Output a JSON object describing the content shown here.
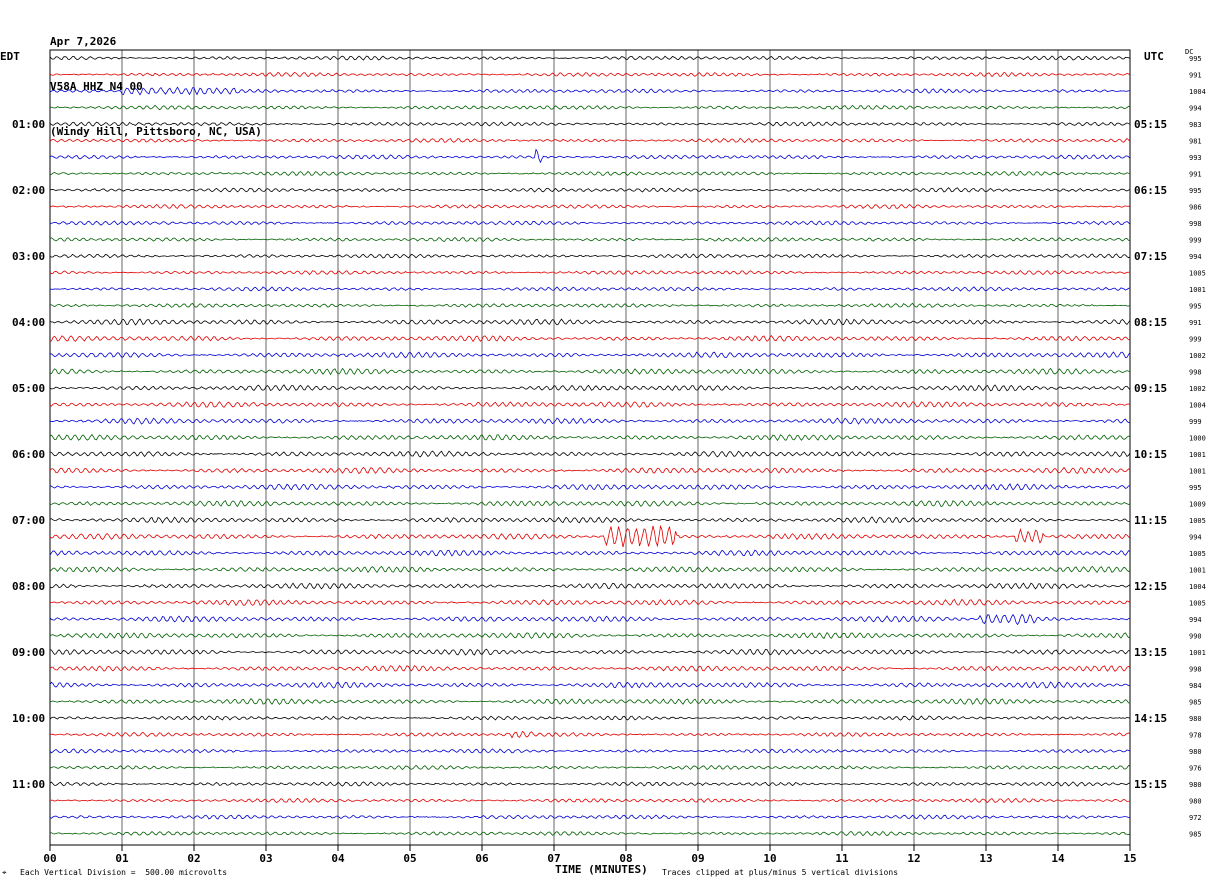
{
  "header": {
    "date": "Apr 7,2026",
    "station": "V58A HHZ N4 00",
    "location": "(Windy Hill, Pittsboro, NC, USA)"
  },
  "left_tz": "EDT",
  "right_tz": "UTC",
  "dc_label": "DC",
  "footer": {
    "scale": "Each Vertical Division =  500.00 microvolts",
    "clip": "Traces clipped at plus/minus 5 vertical divisions",
    "xlabel": "TIME (MINUTES)"
  },
  "chart_data": {
    "type": "line",
    "title": "V58A HHZ N4 00",
    "xlabel": "TIME (MINUTES)",
    "xlim": [
      0,
      15
    ],
    "x_ticks": [
      "00",
      "01",
      "02",
      "03",
      "04",
      "05",
      "06",
      "07",
      "08",
      "09",
      "10",
      "11",
      "12",
      "13",
      "14",
      "15"
    ],
    "left_hour_labels": [
      "01:00",
      "02:00",
      "03:00",
      "04:00",
      "05:00",
      "06:00",
      "07:00",
      "08:00",
      "09:00",
      "10:00",
      "11:00"
    ],
    "right_hour_labels": [
      "05:15",
      "06:15",
      "07:15",
      "08:15",
      "09:15",
      "10:15",
      "11:15",
      "12:15",
      "13:15",
      "14:15",
      "15:15"
    ],
    "trace_colors": [
      "#000000",
      "#e00000",
      "#0000d0",
      "#006000"
    ],
    "dc_offsets": [
      995,
      991,
      1004,
      994,
      983,
      981,
      993,
      991,
      995,
      986,
      998,
      999,
      994,
      1005,
      1001,
      995,
      991,
      999,
      1002,
      998,
      1002,
      1004,
      999,
      1000,
      1001,
      1001,
      995,
      1009,
      1005,
      994,
      1005,
      1001,
      1004,
      1005,
      994,
      990,
      1001,
      998,
      984,
      985,
      980,
      978,
      980,
      976,
      980,
      980,
      972,
      985
    ],
    "events": [
      {
        "trace": 2,
        "minute_start": 1.0,
        "minute_end": 2.6,
        "amp": 2.0
      },
      {
        "trace": 6,
        "minute_start": 6.75,
        "minute_end": 6.85,
        "amp": 4.5
      },
      {
        "trace": 29,
        "minute_start": 7.7,
        "minute_end": 8.7,
        "amp": 4.0
      },
      {
        "trace": 29,
        "minute_start": 13.4,
        "minute_end": 13.8,
        "amp": 2.5
      },
      {
        "trace": 34,
        "minute_start": 12.9,
        "minute_end": 13.7,
        "amp": 2.0
      },
      {
        "trace": 41,
        "minute_start": 6.4,
        "minute_end": 6.7,
        "amp": 2.0
      }
    ]
  }
}
